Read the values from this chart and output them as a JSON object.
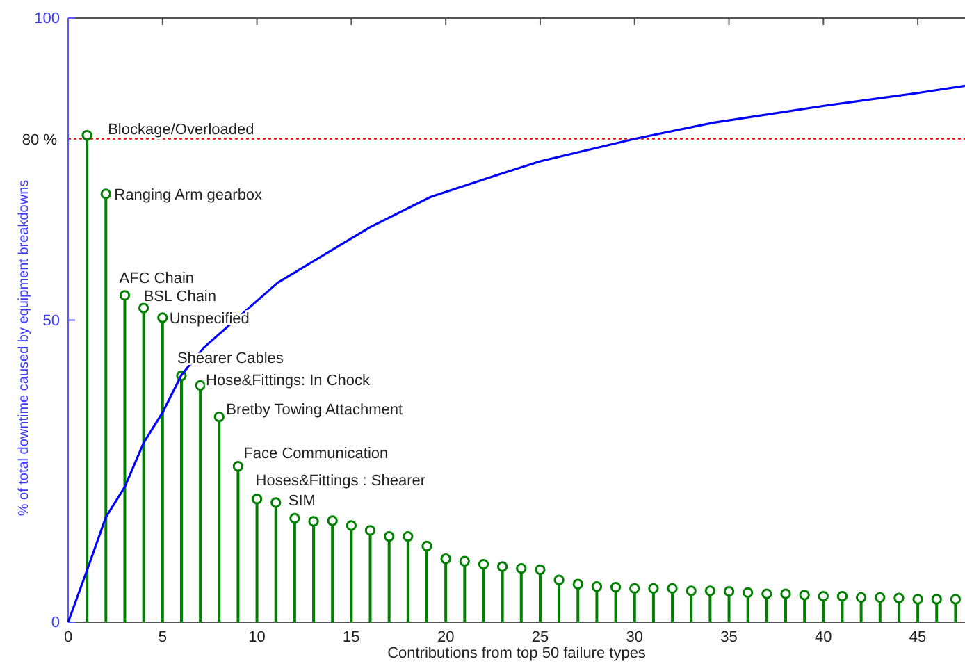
{
  "chart_data": {
    "type": "lollipop",
    "xlabel": "Contributions from top 50 failure types",
    "ylabel": "% of total downtime caused by equipment breakdowns",
    "xlim": [
      0,
      47.5
    ],
    "xticks": [
      0,
      5,
      10,
      15,
      20,
      25,
      30,
      35,
      40,
      45
    ],
    "ylim": [
      0,
      100
    ],
    "yticks": [
      0,
      50,
      100
    ],
    "grid": false,
    "series": [
      {
        "color": "#008000",
        "marker": "circle",
        "x": [
          1,
          2,
          3,
          4,
          5,
          6,
          7,
          8,
          9,
          10,
          11,
          12,
          13,
          14,
          15,
          16,
          17,
          18,
          19,
          20,
          21,
          22,
          23,
          24,
          25,
          26,
          27,
          28,
          29,
          30,
          31,
          32,
          33,
          34,
          35,
          36,
          37,
          38,
          39,
          40,
          41,
          42,
          43,
          44,
          45,
          46,
          47
        ],
        "values": [
          80.6,
          70.9,
          54.1,
          52.0,
          50.4,
          40.8,
          39.2,
          34.0,
          25.8,
          20.4,
          19.8,
          17.2,
          16.7,
          16.8,
          16.0,
          15.2,
          14.2,
          14.2,
          12.6,
          10.5,
          10.1,
          9.6,
          9.2,
          8.9,
          8.7,
          7.0,
          6.3,
          5.9,
          5.8,
          5.6,
          5.6,
          5.6,
          5.2,
          5.2,
          5.1,
          4.9,
          4.7,
          4.7,
          4.5,
          4.3,
          4.3,
          4.1,
          4.1,
          4.0,
          3.8,
          3.8,
          3.8
        ]
      },
      {
        "type": "line",
        "color": "#0000ff",
        "marker": "none",
        "line_style": "solid",
        "x": [
          0,
          1,
          2,
          3,
          4,
          5,
          6,
          7.2,
          11.1,
          16,
          19.2,
          22.9,
          25,
          30,
          34.2,
          40.1,
          45,
          47.5
        ],
        "values": [
          0,
          8.6,
          17.4,
          22.4,
          29.7,
          34.7,
          40.9,
          45.5,
          56.2,
          65.4,
          70.4,
          74.2,
          76.3,
          80.0,
          82.7,
          85.5,
          87.6,
          88.8
        ]
      }
    ],
    "ref_lines": [
      {
        "axis": "y",
        "value": 80,
        "label": "80 %",
        "color": "#ff0000",
        "line_style": "dotted"
      }
    ],
    "annotations": [
      {
        "text": "Blockage/Overloaded",
        "x": 1,
        "y": 80.6
      },
      {
        "text": "Ranging Arm gearbox",
        "x": 2,
        "y": 70.9
      },
      {
        "text": "AFC Chain",
        "x": 3,
        "y": 54.1
      },
      {
        "text": "BSL Chain",
        "x": 4,
        "y": 52.0
      },
      {
        "text": "Unspecified",
        "x": 5,
        "y": 50.4
      },
      {
        "text": "Shearer Cables",
        "x": 6,
        "y": 40.8
      },
      {
        "text": "Hose&Fittings: In Chock",
        "x": 7,
        "y": 39.2
      },
      {
        "text": "Bretby Towing Attachment",
        "x": 8,
        "y": 34.0
      },
      {
        "text": "Face Communication",
        "x": 9,
        "y": 25.8
      },
      {
        "text": "Hoses&Fittings : Shearer",
        "x": 10,
        "y": 20.4
      },
      {
        "text": "SIM",
        "x": 11,
        "y": 19.8
      }
    ]
  }
}
